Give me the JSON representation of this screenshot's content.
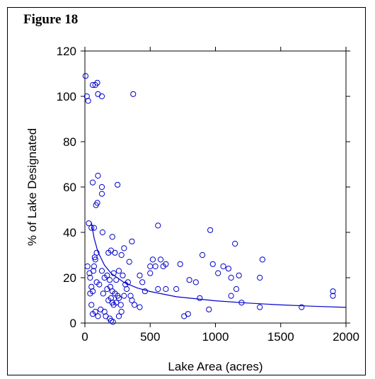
{
  "figure_label": "Figure 18",
  "colors": {
    "series": "#0000cc",
    "axis": "#000000",
    "background": "#ffffff"
  },
  "chart_data": {
    "type": "scatter",
    "title": "",
    "xlabel": "Lake Area (acres)",
    "ylabel": "% of Lake Designated",
    "xlim": [
      0,
      2000
    ],
    "ylim": [
      0,
      120
    ],
    "xticks": [
      0,
      500,
      1000,
      1500,
      2000
    ],
    "yticks": [
      0,
      20,
      40,
      60,
      80,
      100,
      120
    ],
    "grid": false,
    "legend": "none",
    "series": [
      {
        "marker": "open-circle",
        "points": [
          [
            5,
            109
          ],
          [
            15,
            100
          ],
          [
            25,
            98
          ],
          [
            60,
            105
          ],
          [
            80,
            105
          ],
          [
            95,
            106
          ],
          [
            100,
            101
          ],
          [
            130,
            100
          ],
          [
            370,
            101
          ],
          [
            100,
            65
          ],
          [
            250,
            61
          ],
          [
            60,
            62
          ],
          [
            130,
            60
          ],
          [
            130,
            57
          ],
          [
            95,
            53
          ],
          [
            85,
            52
          ],
          [
            30,
            44
          ],
          [
            50,
            42
          ],
          [
            70,
            42
          ],
          [
            560,
            43
          ],
          [
            960,
            41
          ],
          [
            1150,
            35
          ],
          [
            1360,
            28
          ],
          [
            135,
            40
          ],
          [
            210,
            38
          ],
          [
            360,
            36
          ],
          [
            300,
            33
          ],
          [
            200,
            32
          ],
          [
            180,
            31
          ],
          [
            90,
            31
          ],
          [
            75,
            29
          ],
          [
            80,
            28
          ],
          [
            230,
            31
          ],
          [
            280,
            30
          ],
          [
            340,
            27
          ],
          [
            520,
            28
          ],
          [
            580,
            28
          ],
          [
            730,
            26
          ],
          [
            980,
            26
          ],
          [
            1100,
            24
          ],
          [
            900,
            30
          ],
          [
            1060,
            25
          ],
          [
            1120,
            20
          ],
          [
            1340,
            20
          ],
          [
            1180,
            21
          ],
          [
            1020,
            22
          ],
          [
            800,
            19
          ],
          [
            850,
            18
          ],
          [
            500,
            22
          ],
          [
            540,
            25
          ],
          [
            600,
            25
          ],
          [
            620,
            26
          ],
          [
            500,
            25
          ],
          [
            420,
            21
          ],
          [
            440,
            18
          ],
          [
            460,
            14
          ],
          [
            560,
            15
          ],
          [
            620,
            15
          ],
          [
            700,
            15
          ],
          [
            880,
            11
          ],
          [
            1120,
            12
          ],
          [
            1160,
            15
          ],
          [
            1200,
            9
          ],
          [
            1340,
            7
          ],
          [
            1660,
            7
          ],
          [
            1900,
            14
          ],
          [
            1900,
            12
          ],
          [
            950,
            6
          ],
          [
            760,
            3
          ],
          [
            790,
            4
          ],
          [
            40,
            13
          ],
          [
            60,
            14
          ],
          [
            50,
            16
          ],
          [
            40,
            20
          ],
          [
            70,
            25
          ],
          [
            65,
            23
          ],
          [
            90,
            18
          ],
          [
            110,
            17
          ],
          [
            20,
            25
          ],
          [
            35,
            22
          ],
          [
            130,
            23
          ],
          [
            150,
            20
          ],
          [
            170,
            21
          ],
          [
            190,
            19
          ],
          [
            220,
            22
          ],
          [
            240,
            19
          ],
          [
            260,
            23
          ],
          [
            290,
            21
          ],
          [
            310,
            17
          ],
          [
            330,
            18
          ],
          [
            350,
            12
          ],
          [
            360,
            10
          ],
          [
            380,
            8
          ],
          [
            420,
            7
          ],
          [
            180,
            10
          ],
          [
            200,
            11
          ],
          [
            210,
            9
          ],
          [
            220,
            8
          ],
          [
            240,
            9
          ],
          [
            260,
            11
          ],
          [
            275,
            8
          ],
          [
            50,
            8
          ],
          [
            60,
            4
          ],
          [
            80,
            5
          ],
          [
            100,
            3
          ],
          [
            120,
            6
          ],
          [
            150,
            5
          ],
          [
            160,
            3
          ],
          [
            200,
            1
          ],
          [
            215,
            0.5
          ],
          [
            190,
            2
          ],
          [
            260,
            3
          ],
          [
            280,
            5
          ],
          [
            300,
            12
          ],
          [
            320,
            15
          ],
          [
            140,
            13
          ],
          [
            170,
            15
          ],
          [
            195,
            16
          ],
          [
            210,
            14
          ],
          [
            230,
            13
          ],
          [
            250,
            12
          ]
        ]
      }
    ],
    "fit_curve": {
      "type": "line",
      "x": [
        50,
        70,
        100,
        150,
        200,
        300,
        400,
        500,
        700,
        1000,
        1250,
        1500,
        1750,
        2000
      ],
      "y": [
        44.4,
        37.6,
        31.4,
        25.5,
        22.0,
        17.9,
        15.5,
        13.9,
        11.6,
        9.8,
        8.8,
        8.0,
        7.4,
        6.9
      ]
    }
  }
}
